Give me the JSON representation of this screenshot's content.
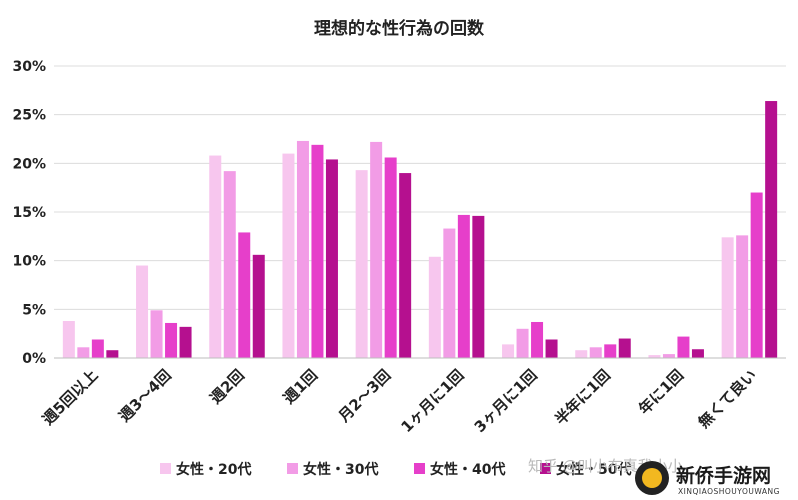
{
  "chart_data": {
    "type": "bar",
    "title": "理想的な性行為の回数",
    "categories": [
      "週5回以上",
      "週3～4回",
      "週2回",
      "週1回",
      "月2～3回",
      "1ヶ月に1回",
      "3ヶ月に1回",
      "半年に1回",
      "年に1回",
      "無くて良い"
    ],
    "yticks": [
      "0%",
      "5%",
      "10%",
      "15%",
      "20%",
      "25%",
      "30%"
    ],
    "ylim": [
      0,
      30
    ],
    "grid": true,
    "legend_position": "bottom",
    "series": [
      {
        "name": "女性・20代",
        "color": "#f7c6ee",
        "values": [
          3.8,
          9.5,
          20.8,
          21.0,
          19.3,
          10.4,
          1.4,
          0.8,
          0.3,
          12.4
        ]
      },
      {
        "name": "女性・30代",
        "color": "#f29ce6",
        "values": [
          1.1,
          4.9,
          19.2,
          22.3,
          22.2,
          13.3,
          3.0,
          1.1,
          0.4,
          12.6
        ]
      },
      {
        "name": "女性・40代",
        "color": "#e63fca",
        "values": [
          1.9,
          3.6,
          12.9,
          21.9,
          20.6,
          14.7,
          3.7,
          1.4,
          2.2,
          17.0
        ]
      },
      {
        "name": "女性・50代",
        "color": "#b5108f",
        "values": [
          0.8,
          3.2,
          10.6,
          20.4,
          19.0,
          14.6,
          1.9,
          2.0,
          0.9,
          26.4
        ]
      }
    ]
  },
  "watermark": {
    "text": "知乎 @叫小布真我小小"
  },
  "logo": {
    "main": "新侨手游网",
    "sub": "XINQIAOSHOUYOUWANG"
  }
}
